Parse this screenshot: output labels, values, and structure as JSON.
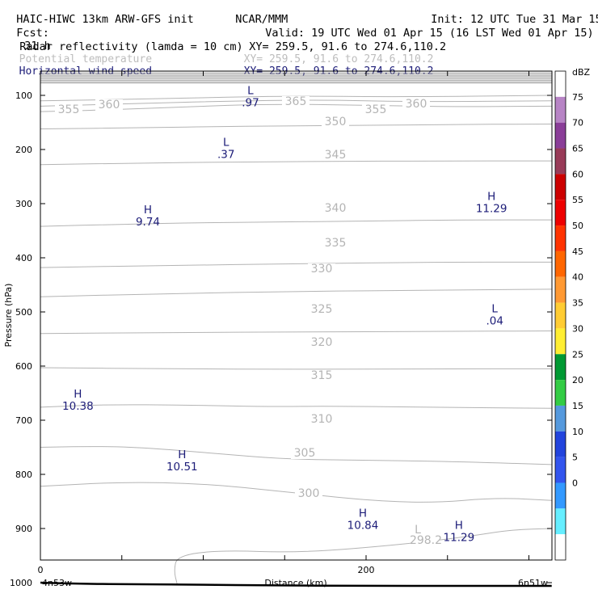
{
  "header": {
    "model": "HAIC-HIWC 13km ARW-GFS init",
    "org": "NCAR/MMM",
    "init": "Init: 12 UTC Tue 31 Mar 15",
    "fcst_label": "Fcst:",
    "fcst_value": "31 h",
    "valid": "Valid: 19 UTC Wed 01 Apr 15 (16 LST Wed 01 Apr 15)",
    "fields": [
      {
        "name": "Radar reflectivity (lamda = 10 cm)",
        "xy": "XY= 259.5, 91.6 to 274.6,110.2",
        "color": "#000000"
      },
      {
        "name": "Potential temperature",
        "xy": "XY= 259.5, 91.6 to 274.6,110.2",
        "color": "#bdbdbd"
      },
      {
        "name": "Horizontal wind speed",
        "xy": "XY= 259.5, 91.6 to 274.6,110.2",
        "color": "#1c1c78"
      }
    ]
  },
  "chart_data": {
    "type": "cross-section",
    "ylabel": "Pressure (hPa)",
    "xlabel": "Distance (km)",
    "x_ticks": [
      "0",
      "200"
    ],
    "y_ticks": [
      "100",
      "200",
      "300",
      "400",
      "500",
      "600",
      "700",
      "800",
      "900",
      "1000"
    ],
    "x_left_label": "4n53w",
    "x_right_label": "6n51w",
    "xlim": [
      0,
      314
    ],
    "ylim_pressure": [
      1050,
      50
    ],
    "theta_contours": [
      {
        "label": "355",
        "points": [
          [
            0,
            130
          ],
          [
            40,
            127
          ],
          [
            90,
            121
          ],
          [
            140,
            116
          ],
          [
            200,
            118
          ],
          [
            250,
            121
          ],
          [
            314,
            120
          ]
        ]
      },
      {
        "label": "360",
        "points": [
          [
            0,
            120
          ],
          [
            60,
            115
          ],
          [
            110,
            111
          ],
          [
            170,
            108
          ],
          [
            230,
            112
          ],
          [
            314,
            110
          ]
        ]
      },
      {
        "label": "365",
        "points": [
          [
            0,
            110
          ],
          [
            80,
            106
          ],
          [
            150,
            101
          ],
          [
            220,
            103
          ],
          [
            314,
            100
          ]
        ]
      },
      {
        "label": "350",
        "points": [
          [
            0,
            162
          ],
          [
            60,
            160
          ],
          [
            120,
            157
          ],
          [
            180,
            156
          ],
          [
            240,
            154
          ],
          [
            314,
            153
          ]
        ]
      },
      {
        "label": "345",
        "points": [
          [
            0,
            228
          ],
          [
            60,
            225
          ],
          [
            120,
            223
          ],
          [
            180,
            222
          ],
          [
            240,
            221
          ],
          [
            314,
            221
          ]
        ]
      },
      {
        "label": "340",
        "points": [
          [
            0,
            342
          ],
          [
            50,
            338
          ],
          [
            100,
            335
          ],
          [
            150,
            334
          ],
          [
            200,
            332
          ],
          [
            260,
            330
          ],
          [
            314,
            330
          ]
        ]
      },
      {
        "label": "335",
        "points": [
          [
            0,
            418
          ],
          [
            80,
            414
          ],
          [
            160,
            411
          ],
          [
            240,
            408
          ],
          [
            314,
            408
          ]
        ]
      },
      {
        "label": "330",
        "points": [
          [
            0,
            472
          ],
          [
            80,
            466
          ],
          [
            160,
            462
          ],
          [
            240,
            460
          ],
          [
            314,
            458
          ]
        ]
      },
      {
        "label": "325",
        "points": [
          [
            0,
            540
          ],
          [
            80,
            538
          ],
          [
            160,
            537
          ],
          [
            240,
            536
          ],
          [
            314,
            535
          ]
        ]
      },
      {
        "label": "320",
        "points": [
          [
            0,
            603
          ],
          [
            80,
            605
          ],
          [
            160,
            606
          ],
          [
            240,
            605
          ],
          [
            314,
            605
          ]
        ]
      },
      {
        "label": "315",
        "points": [
          [
            0,
            676
          ],
          [
            40,
            671
          ],
          [
            90,
            672
          ],
          [
            140,
            675
          ],
          [
            180,
            674
          ],
          [
            240,
            676
          ],
          [
            314,
            678
          ]
        ]
      },
      {
        "label": "310",
        "points": [
          [
            0,
            750
          ],
          [
            40,
            748
          ],
          [
            70,
            752
          ],
          [
            110,
            762
          ],
          [
            150,
            772
          ],
          [
            200,
            774
          ],
          [
            250,
            776
          ],
          [
            314,
            782
          ]
        ]
      },
      {
        "label": "305",
        "points": [
          [
            0,
            822
          ],
          [
            50,
            814
          ],
          [
            100,
            817
          ],
          [
            150,
            832
          ],
          [
            200,
            848
          ],
          [
            240,
            853
          ],
          [
            280,
            843
          ],
          [
            314,
            848
          ]
        ]
      },
      {
        "label": "300",
        "points": [
          [
            84,
            1003
          ],
          [
            82,
            978
          ],
          [
            84,
            950
          ],
          [
            110,
            940
          ],
          [
            160,
            945
          ],
          [
            220,
            930
          ],
          [
            260,
            916
          ],
          [
            290,
            902
          ],
          [
            314,
            900
          ]
        ]
      },
      {
        "label": "298.2"
      }
    ],
    "wind_extrema": [
      {
        "type": "L",
        "value": ".97",
        "x": 129,
        "p": 110
      },
      {
        "type": "L",
        "value": ".37",
        "x": 114,
        "p": 205
      },
      {
        "type": "H",
        "value": "9.74",
        "x": 66,
        "p": 330
      },
      {
        "type": "H",
        "value": "11.29",
        "x": 277,
        "p": 305
      },
      {
        "type": "L",
        "value": ".04",
        "x": 279,
        "p": 513
      },
      {
        "type": "H",
        "value": "10.38",
        "x": 23,
        "p": 670
      },
      {
        "type": "H",
        "value": "10.51",
        "x": 87,
        "p": 782
      },
      {
        "type": "H",
        "value": "10.84",
        "x": 198,
        "p": 890
      },
      {
        "type": "H",
        "value": "11.29",
        "x": 257,
        "p": 913
      }
    ],
    "colorbar": {
      "unit": "dBZ",
      "labels": [
        "75",
        "70",
        "65",
        "60",
        "55",
        "50",
        "45",
        "40",
        "35",
        "30",
        "25",
        "20",
        "15",
        "10",
        "5",
        "0"
      ],
      "colors": [
        "#ffffff",
        "#b784c5",
        "#8a3e98",
        "#983b58",
        "#cc0000",
        "#ee0000",
        "#ff3300",
        "#ff6600",
        "#ff9933",
        "#ffcc33",
        "#ffee33",
        "#009933",
        "#33cc44",
        "#5599dd",
        "#2244dd",
        "#3355ee",
        "#3399ff",
        "#66eeff",
        "#ffffff"
      ]
    },
    "grid": false
  }
}
